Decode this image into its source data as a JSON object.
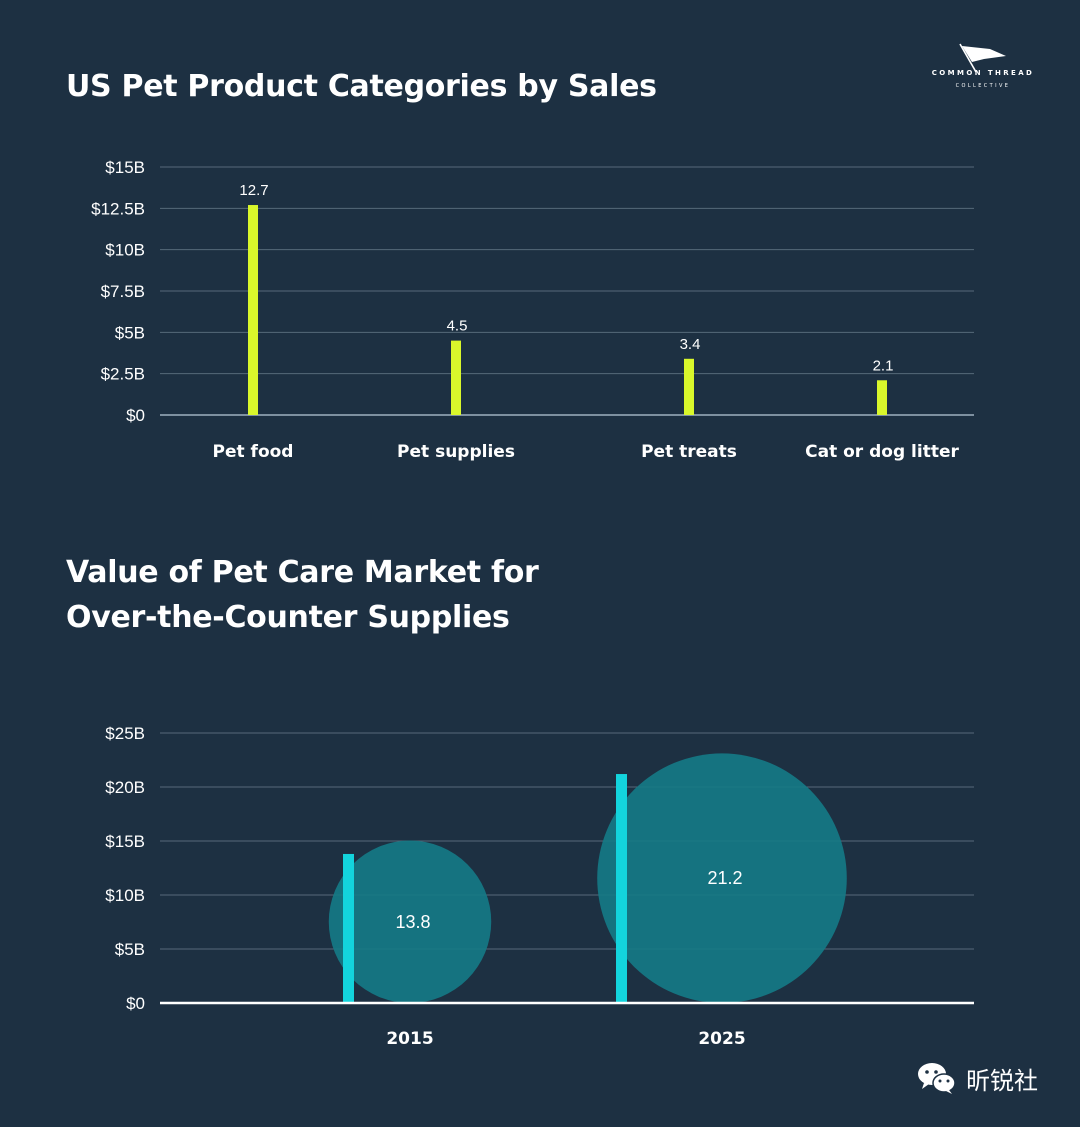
{
  "logo": {
    "text": "COMMON THREAD",
    "subtext": "COLLECTIVE"
  },
  "watermark": {
    "text": "昕锐社"
  },
  "colors": {
    "background": "#1d3042",
    "bar1": "#d9f72b",
    "bar2": "#13d4dd",
    "bubble": "#157986",
    "grid": "#56697a"
  },
  "chart_data": [
    {
      "type": "bar",
      "title": "US Pet Product Categories by Sales",
      "categories": [
        "Pet food",
        "Pet supplies",
        "Pet treats",
        "Cat or dog litter"
      ],
      "values": [
        12.7,
        4.5,
        3.4,
        2.1
      ],
      "data_labels": [
        "12.7",
        "4.5",
        "3.4",
        "2.1"
      ],
      "ylim": [
        0,
        15
      ],
      "yticks": [
        0,
        2.5,
        5,
        7.5,
        10,
        12.5,
        15
      ],
      "ytick_labels": [
        "$0",
        "$2.5B",
        "$5B",
        "$7.5B",
        "$10B",
        "$12.5B",
        "$15B"
      ],
      "grid": true
    },
    {
      "type": "bar",
      "title": "Value of Pet Care Market for Over-the-Counter Supplies",
      "categories": [
        "2015",
        "2025"
      ],
      "values": [
        13.8,
        21.2
      ],
      "data_labels": [
        "13.8",
        "21.2"
      ],
      "ylim": [
        0,
        25
      ],
      "yticks": [
        0,
        5,
        10,
        15,
        20,
        25
      ],
      "ytick_labels": [
        "$0",
        "$5B",
        "$10B",
        "$15B",
        "$20B",
        "$25B"
      ],
      "grid": true,
      "bubbles": true
    }
  ]
}
